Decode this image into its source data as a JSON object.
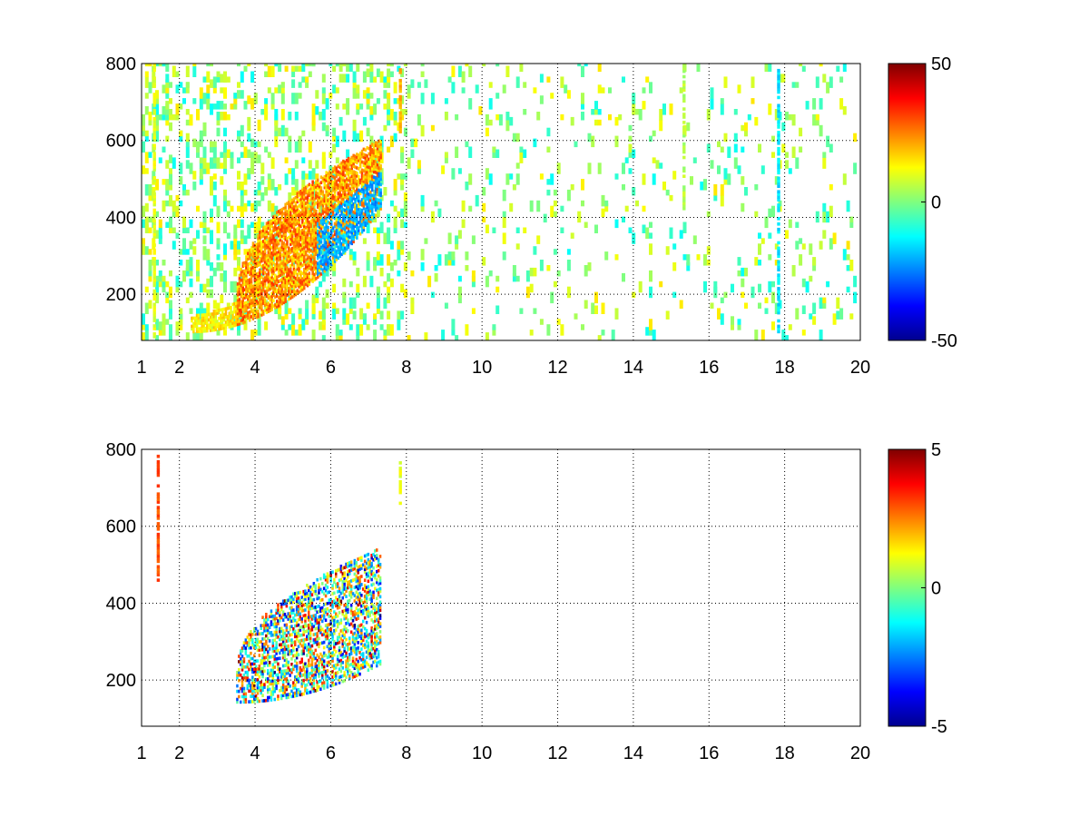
{
  "chart_data": [
    {
      "type": "heatmap",
      "title": "",
      "xlabel": "",
      "ylabel": "",
      "xlim": [
        1,
        20
      ],
      "ylim": [
        80,
        800
      ],
      "x_ticks": [
        "1",
        "2",
        "4",
        "6",
        "8",
        "10",
        "12",
        "14",
        "16",
        "18",
        "20"
      ],
      "y_ticks": [
        "200",
        "400",
        "600",
        "800"
      ],
      "grid": true,
      "colormap": "jet",
      "colorbar": {
        "min": -50,
        "max": 50,
        "ticks": [
          "50",
          "0",
          "-50"
        ]
      },
      "structure": {
        "noise_region_x": [
          1,
          20
        ],
        "noise_density": 0.35,
        "band_lower_x": [
          2.3,
          7.3
        ],
        "band_lower_y": [
          100,
          420
        ],
        "band_upper_x": [
          3.5,
          7.3
        ],
        "band_upper_y": [
          200,
          600
        ],
        "band_warm_value": 35,
        "band_cool_value": -25,
        "vertical_streaks": [
          {
            "x": 1.3,
            "y": [
              80,
              800
            ],
            "value": 10
          },
          {
            "x": 7.8,
            "y": [
              620,
              800
            ],
            "value": 20
          },
          {
            "x": 15.3,
            "y": [
              420,
              800
            ],
            "value": 5
          },
          {
            "x": 17.8,
            "y": [
              100,
              800
            ],
            "value": -15
          }
        ]
      }
    },
    {
      "type": "heatmap",
      "title": "",
      "xlabel": "",
      "ylabel": "",
      "xlim": [
        1,
        20
      ],
      "ylim": [
        80,
        800
      ],
      "x_ticks": [
        "1",
        "2",
        "4",
        "6",
        "8",
        "10",
        "12",
        "14",
        "16",
        "18",
        "20"
      ],
      "y_ticks": [
        "200",
        "400",
        "600",
        "800"
      ],
      "grid": true,
      "colormap": "jet",
      "colorbar": {
        "min": -5,
        "max": 5,
        "ticks": [
          "5",
          "0",
          "-5"
        ]
      },
      "structure": {
        "band_lower_x": [
          3.5,
          7.3
        ],
        "band_lower_y": [
          140,
          240
        ],
        "band_upper_x": [
          3.5,
          7.3
        ],
        "band_upper_y": [
          230,
          540
        ],
        "vertical_streaks": [
          {
            "x": 1.4,
            "y": [
              450,
              780
            ],
            "value": 3
          },
          {
            "x": 7.8,
            "y": [
              650,
              770
            ],
            "value": 1
          }
        ]
      }
    }
  ]
}
